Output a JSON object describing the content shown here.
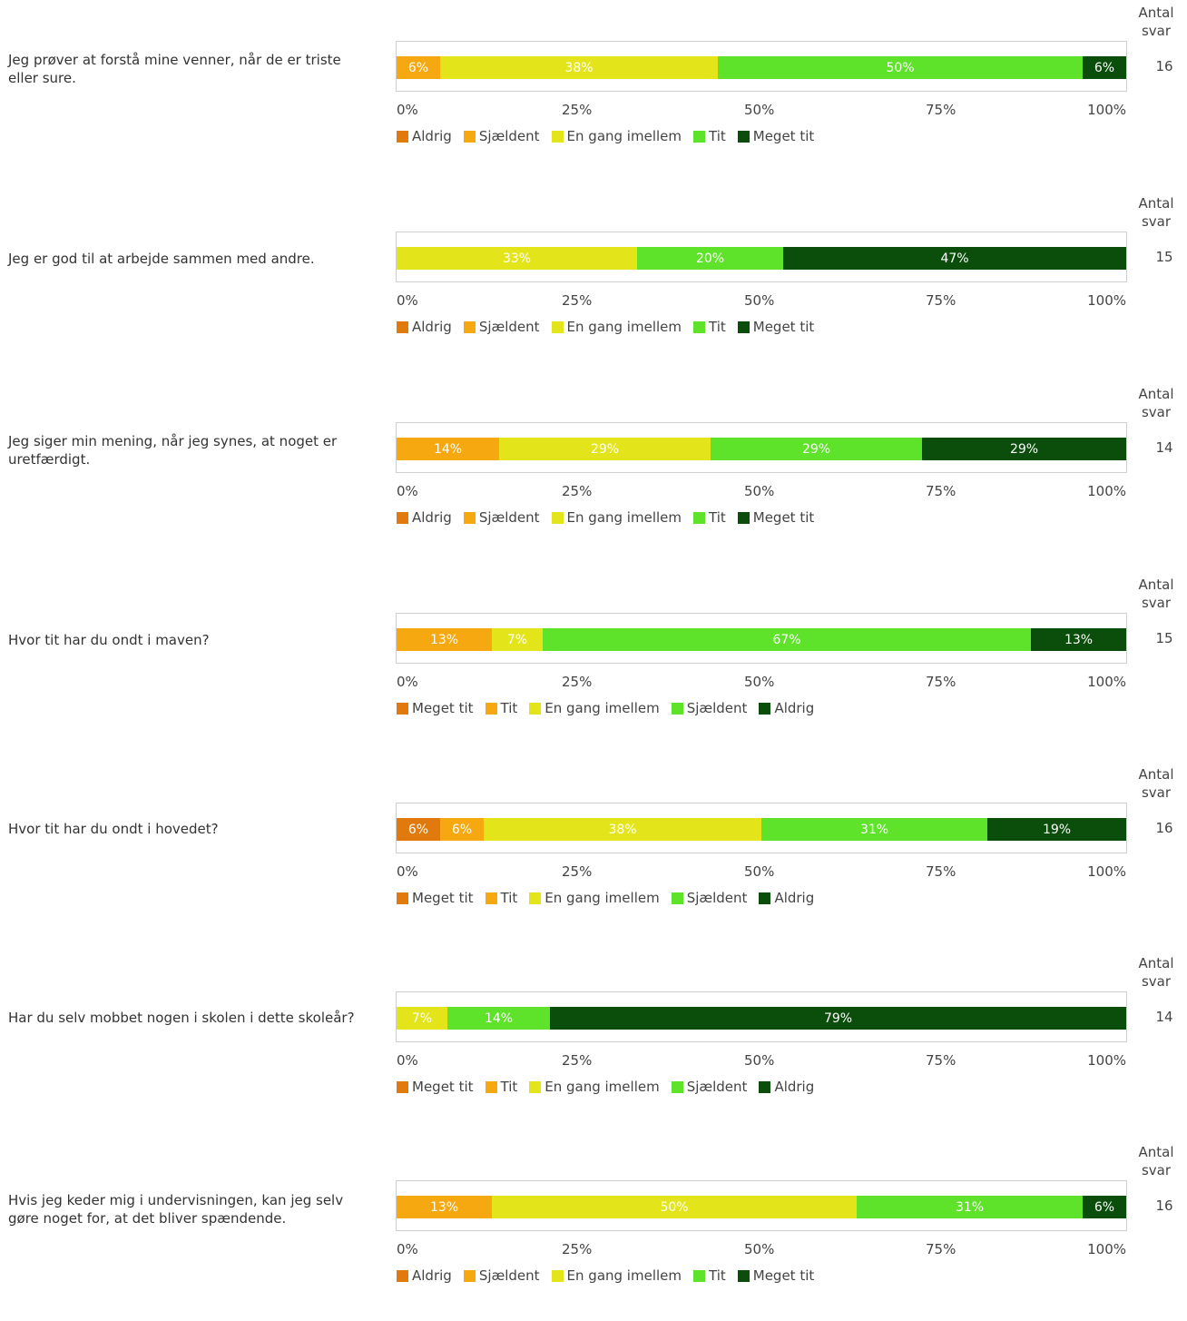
{
  "antal_label": [
    "Antal",
    "svar"
  ],
  "chart_data": [
    {
      "type": "bar",
      "question": "Jeg prøver at forstå mine venner, når de er triste eller sure.",
      "categories": [
        "Aldrig",
        "Sjældent",
        "En gang imellem",
        "Tit",
        "Meget tit"
      ],
      "colors": [
        "#e07a0c",
        "#f5a80f",
        "#e4e41a",
        "#5ee22a",
        "#0b4d0b"
      ],
      "values": [
        0,
        6,
        38,
        50,
        6
      ],
      "count": "16",
      "xticks": [
        "0%",
        "25%",
        "50%",
        "75%",
        "100%"
      ],
      "xlim": [
        0,
        100
      ]
    },
    {
      "type": "bar",
      "question": "Jeg er god til at arbejde sammen med andre.",
      "categories": [
        "Aldrig",
        "Sjældent",
        "En gang imellem",
        "Tit",
        "Meget tit"
      ],
      "colors": [
        "#e07a0c",
        "#f5a80f",
        "#e4e41a",
        "#5ee22a",
        "#0b4d0b"
      ],
      "values": [
        0,
        0,
        33,
        20,
        47
      ],
      "count": "15",
      "xticks": [
        "0%",
        "25%",
        "50%",
        "75%",
        "100%"
      ],
      "xlim": [
        0,
        100
      ]
    },
    {
      "type": "bar",
      "question": "Jeg siger min mening, når jeg synes, at noget er uretfærdigt.",
      "categories": [
        "Aldrig",
        "Sjældent",
        "En gang imellem",
        "Tit",
        "Meget tit"
      ],
      "colors": [
        "#e07a0c",
        "#f5a80f",
        "#e4e41a",
        "#5ee22a",
        "#0b4d0b"
      ],
      "values": [
        0,
        14,
        29,
        29,
        29
      ],
      "count": "14",
      "xticks": [
        "0%",
        "25%",
        "50%",
        "75%",
        "100%"
      ],
      "xlim": [
        0,
        100
      ]
    },
    {
      "type": "bar",
      "question": "Hvor tit har du ondt i maven?",
      "categories": [
        "Meget tit",
        "Tit",
        "En gang imellem",
        "Sjældent",
        "Aldrig"
      ],
      "colors": [
        "#e07a0c",
        "#f5a80f",
        "#e4e41a",
        "#5ee22a",
        "#0b4d0b"
      ],
      "values": [
        0,
        13,
        7,
        67,
        13
      ],
      "count": "15",
      "xticks": [
        "0%",
        "25%",
        "50%",
        "75%",
        "100%"
      ],
      "xlim": [
        0,
        100
      ]
    },
    {
      "type": "bar",
      "question": "Hvor tit har du ondt i hovedet?",
      "categories": [
        "Meget tit",
        "Tit",
        "En gang imellem",
        "Sjældent",
        "Aldrig"
      ],
      "colors": [
        "#e07a0c",
        "#f5a80f",
        "#e4e41a",
        "#5ee22a",
        "#0b4d0b"
      ],
      "values": [
        6,
        6,
        38,
        31,
        19
      ],
      "count": "16",
      "xticks": [
        "0%",
        "25%",
        "50%",
        "75%",
        "100%"
      ],
      "xlim": [
        0,
        100
      ]
    },
    {
      "type": "bar",
      "question": "Har du selv mobbet nogen i skolen i dette skoleår?",
      "categories": [
        "Meget tit",
        "Tit",
        "En gang imellem",
        "Sjældent",
        "Aldrig"
      ],
      "colors": [
        "#e07a0c",
        "#f5a80f",
        "#e4e41a",
        "#5ee22a",
        "#0b4d0b"
      ],
      "values": [
        0,
        0,
        7,
        14,
        79
      ],
      "count": "14",
      "xticks": [
        "0%",
        "25%",
        "50%",
        "75%",
        "100%"
      ],
      "xlim": [
        0,
        100
      ]
    },
    {
      "type": "bar",
      "question": "Hvis jeg keder mig i undervisningen, kan jeg selv gøre noget for, at det bliver spændende.",
      "categories": [
        "Aldrig",
        "Sjældent",
        "En gang imellem",
        "Tit",
        "Meget tit"
      ],
      "colors": [
        "#e07a0c",
        "#f5a80f",
        "#e4e41a",
        "#5ee22a",
        "#0b4d0b"
      ],
      "values": [
        0,
        13,
        50,
        31,
        6
      ],
      "count": "16",
      "xticks": [
        "0%",
        "25%",
        "50%",
        "75%",
        "100%"
      ],
      "xlim": [
        0,
        100
      ]
    }
  ]
}
